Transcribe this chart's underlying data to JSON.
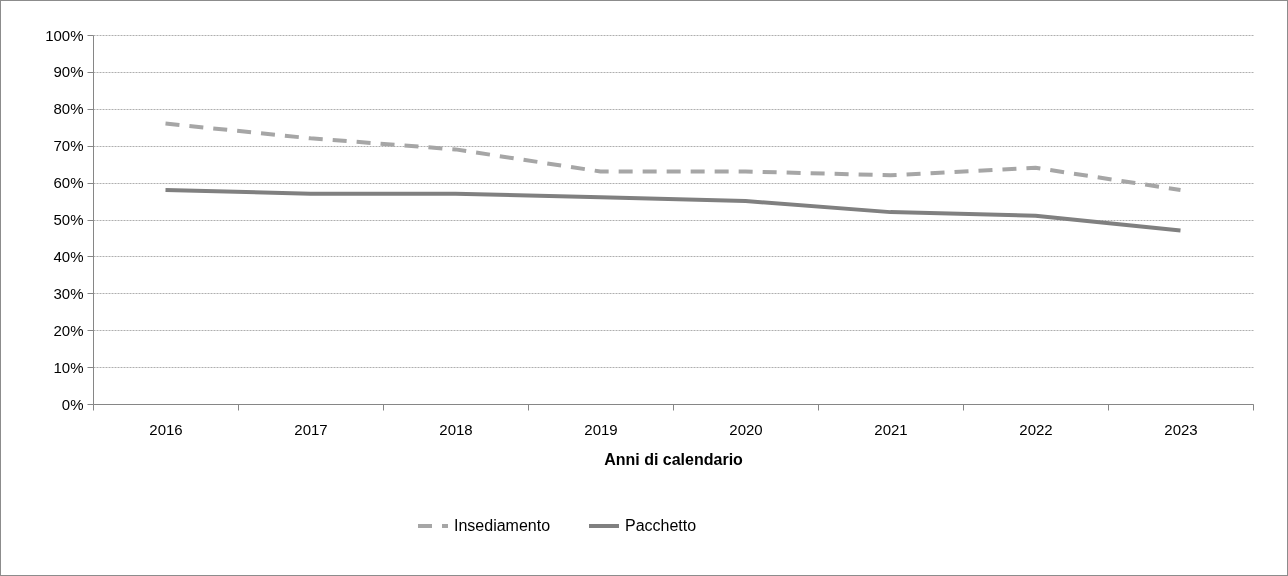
{
  "chart_data": {
    "type": "line",
    "xlabel": "Anni  di calendario",
    "categories": [
      "2016",
      "2017",
      "2018",
      "2019",
      "2020",
      "2021",
      "2022",
      "2023"
    ],
    "series": [
      {
        "name": "Insediamento",
        "color": "#a6a6a6",
        "line_style": "dashed",
        "values": [
          76,
          72,
          69,
          63,
          63,
          62,
          64,
          58
        ]
      },
      {
        "name": "Pacchetto",
        "color": "#808080",
        "line_style": "solid",
        "values": [
          58,
          57,
          57,
          56,
          55,
          52,
          51,
          47
        ]
      }
    ],
    "ylim": [
      0,
      100
    ],
    "yticks": [
      {
        "value": 0,
        "label": "0%"
      },
      {
        "value": 10,
        "label": "10%"
      },
      {
        "value": 20,
        "label": "20%"
      },
      {
        "value": 30,
        "label": "30%"
      },
      {
        "value": 40,
        "label": "40%"
      },
      {
        "value": 50,
        "label": "50%"
      },
      {
        "value": 60,
        "label": "60%"
      },
      {
        "value": 70,
        "label": "70%"
      },
      {
        "value": 80,
        "label": "80%"
      },
      {
        "value": 90,
        "label": "90%"
      },
      {
        "value": 100,
        "label": "100%"
      }
    ],
    "grid": "y",
    "legend": "bottom",
    "marker": "none"
  }
}
